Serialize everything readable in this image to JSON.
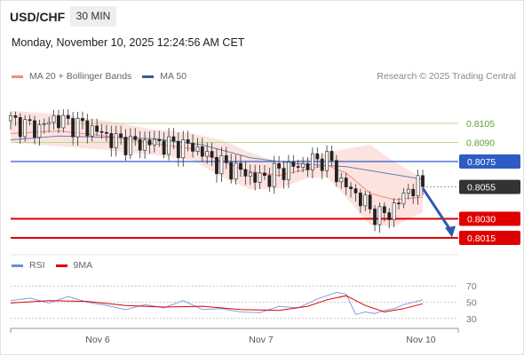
{
  "header": {
    "symbol": "USD/CHF",
    "timeframe": "30 MIN",
    "datetime": "Monday, November 10, 2025 12:24:56 AM CET"
  },
  "legend": {
    "main": [
      {
        "label": "MA 20 + Bollinger Bands",
        "color": "#f28b82"
      },
      {
        "label": "MA 50",
        "color": "#3a5a9a"
      }
    ],
    "credit": "Research © 2025 Trading Central",
    "rsi": [
      {
        "label": "RSI",
        "color": "#6a8fd8"
      },
      {
        "label": "9MA",
        "color": "#e00000"
      }
    ]
  },
  "chart_data": [
    {
      "type": "candlestick",
      "x_ticks": [
        "Nov 6",
        "Nov 7",
        "Nov 10"
      ],
      "ylim": [
        0.8008,
        0.8128
      ],
      "levels": [
        {
          "label": "0.8105",
          "value": 0.8105,
          "style": "green-line"
        },
        {
          "label": "0.8090",
          "value": 0.809,
          "style": "green-line"
        },
        {
          "label": "0.8075",
          "value": 0.8075,
          "style": "blue-line"
        },
        {
          "label": "0.8055",
          "value": 0.8055,
          "style": "current-price"
        },
        {
          "label": "0.8030",
          "value": 0.803,
          "style": "red-line"
        },
        {
          "label": "0.8015",
          "value": 0.8015,
          "style": "red-line"
        }
      ],
      "price_path": [
        [
          0,
          0.8107
        ],
        [
          3,
          0.8103
        ],
        [
          6,
          0.8101
        ],
        [
          9,
          0.8109
        ],
        [
          12,
          0.8105
        ],
        [
          15,
          0.8103
        ],
        [
          18,
          0.8099
        ],
        [
          22,
          0.8091
        ],
        [
          26,
          0.8089
        ],
        [
          30,
          0.809
        ],
        [
          33,
          0.8088
        ],
        [
          36,
          0.8087
        ],
        [
          38,
          0.8087
        ],
        [
          40,
          0.8082
        ],
        [
          43,
          0.8074
        ],
        [
          46,
          0.807
        ],
        [
          49,
          0.8066
        ],
        [
          52,
          0.8061
        ],
        [
          55,
          0.8066
        ],
        [
          58,
          0.807
        ],
        [
          61,
          0.8072
        ],
        [
          63,
          0.8075
        ],
        [
          65,
          0.8077
        ],
        [
          67,
          0.8074
        ],
        [
          69,
          0.8058
        ],
        [
          71,
          0.8053
        ],
        [
          73,
          0.8046
        ],
        [
          75,
          0.8037
        ],
        [
          77,
          0.8032
        ],
        [
          79,
          0.8035
        ],
        [
          81,
          0.8043
        ],
        [
          83,
          0.8053
        ],
        [
          85,
          0.8056
        ],
        [
          86,
          0.8055
        ]
      ],
      "ma20": [
        [
          0,
          0.8097
        ],
        [
          10,
          0.8099
        ],
        [
          20,
          0.8095
        ],
        [
          30,
          0.8089
        ],
        [
          38,
          0.8085
        ],
        [
          44,
          0.8075
        ],
        [
          50,
          0.8067
        ],
        [
          56,
          0.8064
        ],
        [
          62,
          0.8069
        ],
        [
          66,
          0.8072
        ],
        [
          70,
          0.8066
        ],
        [
          75,
          0.805
        ],
        [
          80,
          0.8045
        ],
        [
          86,
          0.8047
        ]
      ],
      "ma50": [
        [
          0,
          0.8092
        ],
        [
          10,
          0.8095
        ],
        [
          20,
          0.8094
        ],
        [
          30,
          0.8093
        ],
        [
          40,
          0.8088
        ],
        [
          50,
          0.8078
        ],
        [
          60,
          0.8073
        ],
        [
          70,
          0.8071
        ],
        [
          78,
          0.8066
        ],
        [
          86,
          0.8061
        ]
      ],
      "bb_upper": [
        [
          0,
          0.8115
        ],
        [
          10,
          0.8112
        ],
        [
          20,
          0.8107
        ],
        [
          30,
          0.81
        ],
        [
          38,
          0.8097
        ],
        [
          44,
          0.8092
        ],
        [
          50,
          0.8082
        ],
        [
          56,
          0.8074
        ],
        [
          62,
          0.8077
        ],
        [
          66,
          0.8082
        ],
        [
          70,
          0.8085
        ],
        [
          75,
          0.8088
        ],
        [
          80,
          0.8075
        ],
        [
          86,
          0.8062
        ]
      ],
      "bb_lower": [
        [
          0,
          0.809
        ],
        [
          10,
          0.8087
        ],
        [
          20,
          0.8084
        ],
        [
          30,
          0.808
        ],
        [
          38,
          0.8076
        ],
        [
          44,
          0.8063
        ],
        [
          50,
          0.8053
        ],
        [
          56,
          0.8054
        ],
        [
          62,
          0.8062
        ],
        [
          66,
          0.8063
        ],
        [
          70,
          0.8047
        ],
        [
          75,
          0.8025
        ],
        [
          80,
          0.8024
        ],
        [
          86,
          0.8035
        ]
      ],
      "forecast": {
        "from": 0.8054,
        "to": 0.8016
      }
    },
    {
      "type": "line",
      "title": "RSI",
      "y_ticks": [
        70,
        50,
        30
      ],
      "ylim": [
        20,
        80
      ],
      "rsi": [
        [
          0,
          52
        ],
        [
          4,
          55
        ],
        [
          8,
          49
        ],
        [
          12,
          57
        ],
        [
          16,
          50
        ],
        [
          20,
          46
        ],
        [
          24,
          41
        ],
        [
          28,
          47
        ],
        [
          32,
          43
        ],
        [
          36,
          52
        ],
        [
          40,
          41
        ],
        [
          44,
          42
        ],
        [
          48,
          38
        ],
        [
          52,
          37
        ],
        [
          56,
          45
        ],
        [
          60,
          43
        ],
        [
          64,
          54
        ],
        [
          68,
          62
        ],
        [
          70,
          60
        ],
        [
          72,
          35
        ],
        [
          74,
          38
        ],
        [
          76,
          36
        ],
        [
          78,
          40
        ],
        [
          80,
          42
        ],
        [
          82,
          47
        ],
        [
          84,
          50
        ],
        [
          86,
          53
        ]
      ],
      "ma9": [
        [
          0,
          49
        ],
        [
          8,
          52
        ],
        [
          16,
          51
        ],
        [
          24,
          46
        ],
        [
          32,
          44
        ],
        [
          40,
          45
        ],
        [
          48,
          41
        ],
        [
          56,
          40
        ],
        [
          62,
          45
        ],
        [
          66,
          53
        ],
        [
          70,
          58
        ],
        [
          74,
          46
        ],
        [
          78,
          38
        ],
        [
          82,
          42
        ],
        [
          86,
          48
        ]
      ]
    }
  ]
}
